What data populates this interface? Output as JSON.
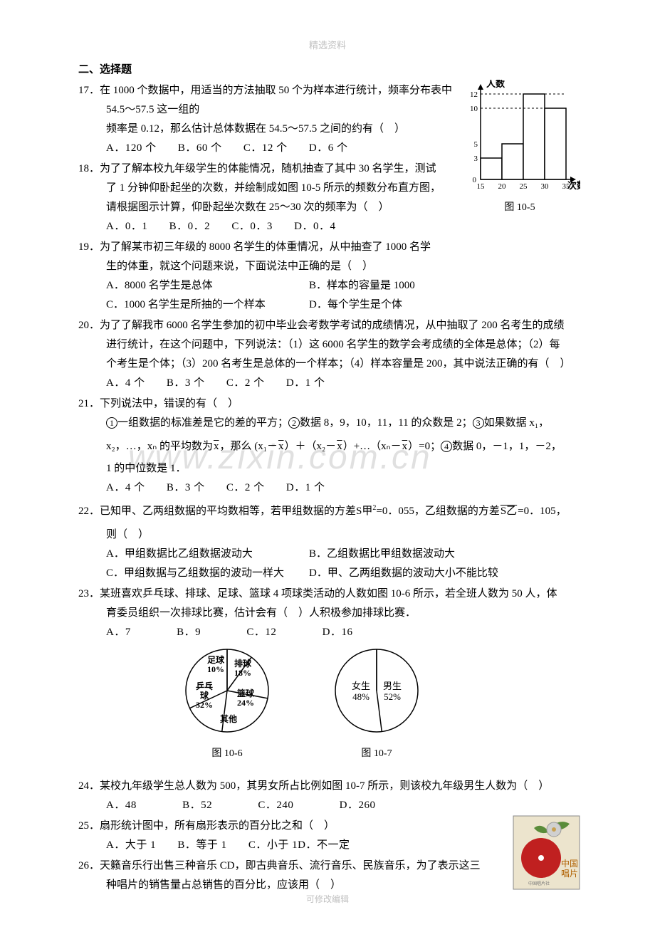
{
  "header": "精选资料",
  "footer": "可修改编辑",
  "watermark": "www.zixin.com.cn",
  "section_title": "二、选择题",
  "q17": {
    "text_a": "17．在 1000 个数据中，用适当的方法抽取 50 个为样本进行统计，频率分布表中 54.5～57.5 这一组的",
    "text_b": "频率是 0.12，那么估计总体数据在 54.5～57.5 之间的约有（　）",
    "opts": {
      "A": "A．120 个",
      "B": "B．60 个",
      "C": "C．12 个",
      "D": "D．6 个"
    }
  },
  "q18": {
    "text_a": "18．为了了解本校九年级学生的体能情况，随机抽查了其中 30 名学生，测试",
    "text_b": "了 1 分钟仰卧起坐的次数，并绘制成如图 10-5 所示的频数分布直方图，",
    "text_c": "请根据图示计算，仰卧起坐次数在 25～30 次的频率为（　）",
    "opts": {
      "A": "A．0．1",
      "B": "B．0．2",
      "C": "C．0．3",
      "D": "D．0．4"
    }
  },
  "histogram": {
    "ylabel": "人数",
    "xlabel": "次数",
    "caption": "图 10-5",
    "ymax": 12,
    "ticks_y": [
      0,
      3,
      5,
      10,
      12
    ],
    "dash_y": [
      10,
      12
    ],
    "ticks_x": [
      15,
      20,
      25,
      30,
      35
    ],
    "bars": [
      {
        "from": 15,
        "to": 20,
        "value": 3
      },
      {
        "from": 20,
        "to": 25,
        "value": 5
      },
      {
        "from": 25,
        "to": 30,
        "value": 12
      },
      {
        "from": 30,
        "to": 35,
        "value": 10
      }
    ],
    "colors": {
      "axis": "#000000",
      "bar_fill": "#ffffff",
      "bar_stroke": "#000000",
      "dash": "#000000"
    },
    "tick_fontsize": 11,
    "label_fontsize": 13
  },
  "q19": {
    "text_a": "19．为了解某市初三年级的 8000 名学生的体重情况，从中抽查了 1000 名学",
    "text_b": "生的体重，就这个问题来说，下面说法中正确的是（　）",
    "opts": {
      "A": "A．8000 名学生是总体",
      "B": "B．样本的容量是 1000",
      "C": "C．1000 名学生是所抽的一个样本",
      "D": "D．每个学生是个体"
    }
  },
  "q20": {
    "text_a": "20．为了了解我市 6000 名学生参加的初中毕业会考数学考试的成绩情况，从中抽取了 200 名考生的成绩",
    "text_b": "进行统计，在这个问题中，下列说法：（1）这 6000 名学生的数学会考成绩的全体是总体；（2）每",
    "text_c": "个考生是个体；（3）200 名考生是总体的一个样本；（4）样本容量是 200，其中说法正确的有（　）",
    "opts": {
      "A": "A．4 个",
      "B": "B．3 个",
      "C": "C．2 个",
      "D": "D．1 个"
    }
  },
  "q21": {
    "text_a": "21．下列说法中，错误的有（　）",
    "line1_a": "一组数据的标准差是它的差的平方；",
    "line1_b": "数据 8，9，10，11，11 的众数是 2；",
    "line1_c": "如果数据 x₁，",
    "line2_a": "x₂，…，xₙ 的平均数为",
    "line2_b": "，那么 (x₁－",
    "line2_c": "）＋（x₂－",
    "line2_d": "）+…（xₙ－",
    "line2_e": "）=0；",
    "line2_f": "数据 0，－1，1，－2，",
    "line3": "1 的中位数是 1．",
    "opts": {
      "A": "A．4 个",
      "B": "B．3 个",
      "C": "C．2 个",
      "D": "D．1 个"
    },
    "circ1": "1",
    "circ2": "2",
    "circ3": "3",
    "circ4": "4",
    "xbar": "x"
  },
  "q22": {
    "text_a": "22．已知甲、乙两组数据的平均数相等，若甲组数据的方差",
    "s_jia": "S甲",
    "text_b": "=0．055，乙组数据的方差",
    "s_yi": "S乙",
    "text_c": "=0．105，",
    "text_d": "则（　）",
    "opts": {
      "A": "A．甲组数据比乙组数据波动大",
      "B": "B．乙组数据比甲组数据波动大",
      "C": "C．甲组数据与乙组数据的波动一样大",
      "D": "D．甲、乙两组数据的波动大小不能比较"
    }
  },
  "q23": {
    "text_a": "23．某班喜欢乒乓球、排球、足球、篮球 4 项球类活动的人数如图 10-6 所示，若全班人数为 50 人，体",
    "text_b": "育委员组织一次排球比赛，估计会有（　）人积极参加排球比赛．",
    "opts": {
      "A": "A．7",
      "B": "B．9",
      "C": "C．12",
      "D": "D．16"
    }
  },
  "pie1": {
    "caption": "图 10-6",
    "slices": [
      {
        "label": "足球",
        "pct": 10,
        "pct_label": "10%",
        "color": "#ffffff"
      },
      {
        "label": "排球",
        "pct": 18,
        "pct_label": "18%",
        "color": "#ffffff"
      },
      {
        "label": "篮球",
        "pct": 24,
        "pct_label": "24%",
        "color": "#ffffff"
      },
      {
        "label": "其他",
        "pct": 16,
        "pct_label": "其他",
        "color": "#ffffff"
      },
      {
        "label": "乒乓球",
        "pct": 32,
        "pct_label": "32%",
        "color": "#ffffff"
      }
    ],
    "label_pingpong": "乒乓",
    "label_pingpong2": "球",
    "radius": 58,
    "stroke": "#000000"
  },
  "pie2": {
    "caption": "图 10-7",
    "slices": [
      {
        "label": "女生",
        "pct": 48,
        "pct_label": "48%",
        "color": "#ffffff"
      },
      {
        "label": "男生",
        "pct": 52,
        "pct_label": "52%",
        "color": "#ffffff"
      }
    ],
    "radius": 58,
    "stroke": "#000000"
  },
  "q24": {
    "text_a": "24．某校九年级学生总人数为 500，其男女所占比例如图 10-7 所示，则该校九年级男生人数为（　）",
    "opts": {
      "A": "A．48",
      "B": "B．52",
      "C": "C．240",
      "D": "D．260"
    }
  },
  "q25": {
    "text_a": "25．扇形统计图中，所有扇形表示的百分比之和（　）",
    "opts": {
      "A": "A．大于 1",
      "B": "B．等于 1",
      "C": "C．小于 1D．不一定"
    }
  },
  "q26": {
    "text_a": "26．天籁音乐行出售三种音乐 CD，即古典音乐、流行音乐、民族音乐，为了表示这三",
    "text_b": "种唱片的销售量占总销售的百分比，应该用（　）"
  },
  "cd": {
    "label1": "中国",
    "label2": "唱片",
    "bg": "#ece4cd",
    "disc": "#c02020",
    "leaf": "#5a8c3a",
    "flower": "#d0d0d0"
  }
}
